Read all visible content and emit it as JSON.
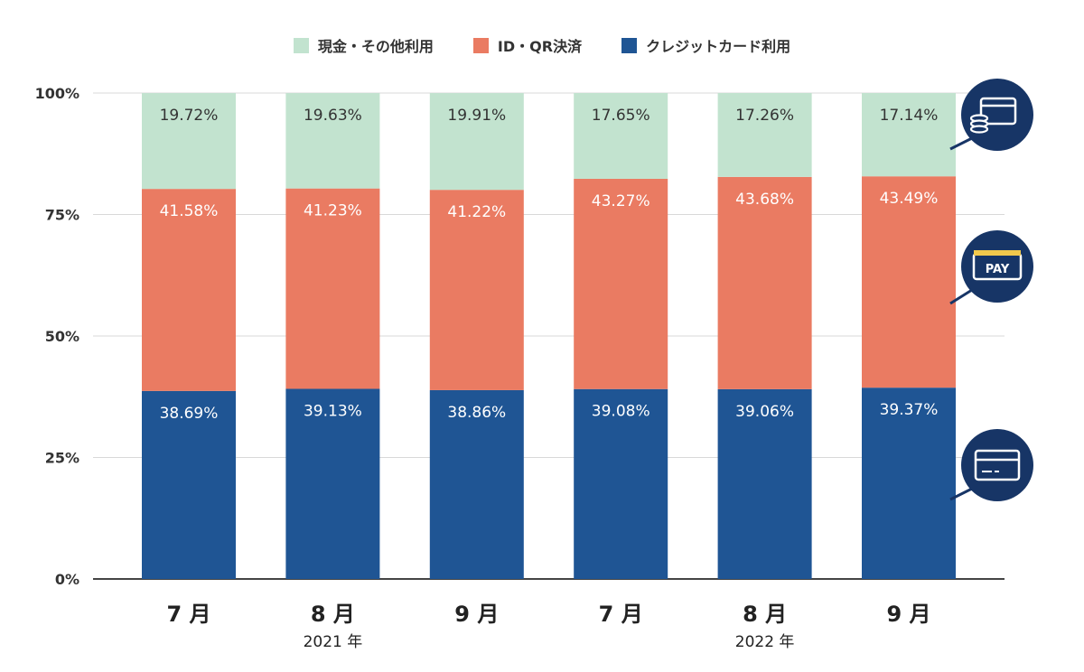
{
  "chart_data": {
    "type": "bar",
    "stacked": true,
    "categories": [
      "7 月",
      "8 月",
      "9 月",
      "7 月",
      "8 月",
      "9 月"
    ],
    "groups": [
      {
        "label": "2021 年",
        "categories": [
          0,
          1,
          2
        ]
      },
      {
        "label": "2022 年",
        "categories": [
          3,
          4,
          5
        ]
      }
    ],
    "series": [
      {
        "name": "クレジットカード利用",
        "color": "#1f5594",
        "values": [
          38.69,
          39.13,
          38.86,
          39.08,
          39.06,
          39.37
        ],
        "labels": [
          "38.69%",
          "39.13%",
          "38.86%",
          "39.08%",
          "39.06%",
          "39.37%"
        ]
      },
      {
        "name": "ID・QR決済",
        "color": "#ea7b62",
        "values": [
          41.58,
          41.23,
          41.22,
          43.27,
          43.68,
          43.49
        ],
        "labels": [
          "41.58%",
          "41.23%",
          "41.22%",
          "43.27%",
          "43.68%",
          "43.49%"
        ]
      },
      {
        "name": "現金・その他利用",
        "color": "#c2e3cf",
        "values": [
          19.72,
          19.63,
          19.91,
          17.65,
          17.26,
          17.14
        ],
        "labels": [
          "19.72%",
          "19.63%",
          "19.91%",
          "17.65%",
          "17.26%",
          "17.14%"
        ]
      }
    ],
    "legend_order": [
      "現金・その他利用",
      "ID・QR決済",
      "クレジットカード利用"
    ],
    "legend_position": "top",
    "ylim": [
      0,
      100
    ],
    "yticks": [
      0,
      25,
      50,
      75,
      100
    ],
    "ytick_labels": [
      "0%",
      "25%",
      "50%",
      "75%",
      "100%"
    ],
    "grid": true,
    "icons": [
      {
        "name": "cash-card-icon",
        "series": "現金・その他利用"
      },
      {
        "name": "pay-icon",
        "series": "ID・QR決済",
        "text": "PAY"
      },
      {
        "name": "credit-card-icon",
        "series": "クレジットカード利用"
      }
    ],
    "icon_color": "#173566"
  }
}
